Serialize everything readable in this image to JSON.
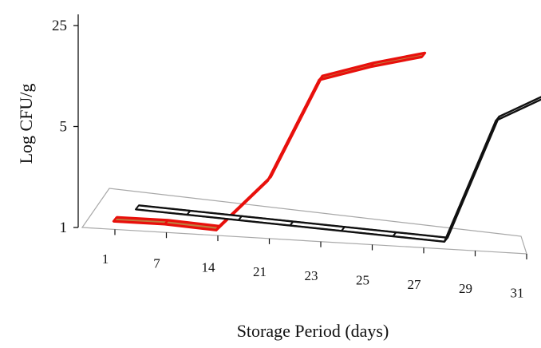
{
  "chart_data": {
    "type": "line",
    "style": "3d",
    "title": "",
    "xlabel": "Storage Period (days)",
    "ylabel": "Log CFU/g",
    "scale": "log",
    "ylim": [
      1,
      25
    ],
    "yticks": [
      {
        "value": 1,
        "label": "1"
      },
      {
        "value": 5,
        "label": "5"
      },
      {
        "value": 25,
        "label": "25"
      }
    ],
    "categories": [
      "1",
      "7",
      "14",
      "21",
      "23",
      "25",
      "27",
      "29",
      "31"
    ],
    "series": [
      {
        "color": "#e8100c",
        "values": [
          1.05,
          1.05,
          1.0,
          2.3,
          12.0,
          15.5,
          19.0,
          null,
          null
        ]
      },
      {
        "color": "#111111",
        "values": [
          1.0,
          1.0,
          1.0,
          1.0,
          1.0,
          1.0,
          1.0,
          7.5,
          12.0
        ]
      }
    ],
    "grid": false,
    "legend": "none"
  }
}
